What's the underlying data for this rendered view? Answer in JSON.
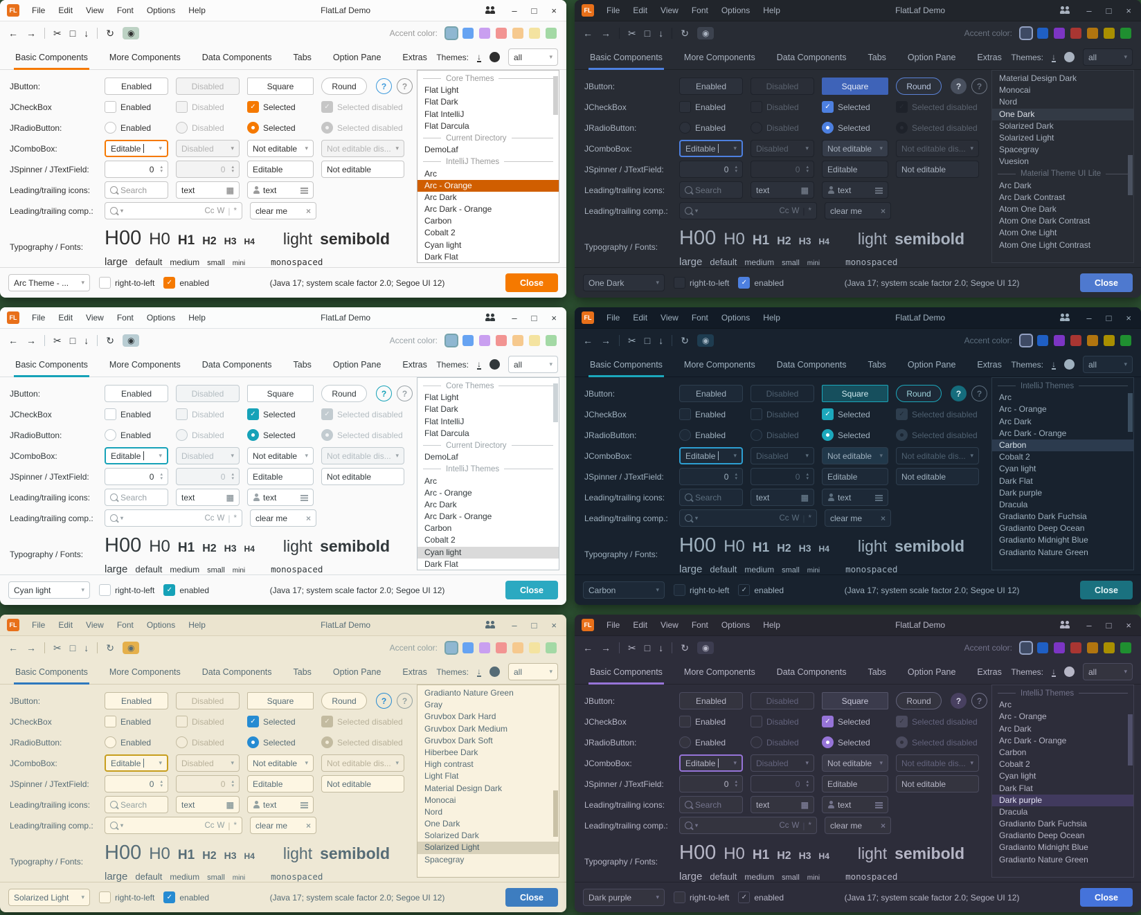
{
  "desktop": {
    "bg": "#2e5233"
  },
  "shared": {
    "logo": "FL",
    "window_title": "FlatLaf Demo",
    "menu": [
      "File",
      "Edit",
      "View",
      "Font",
      "Options",
      "Help"
    ],
    "tabs": [
      "Basic Components",
      "More Components",
      "Data Components",
      "Tabs",
      "Option Pane",
      "Extras"
    ],
    "active_tab": "Basic Components",
    "accent_label": "Accent color:",
    "themes_label": "Themes:",
    "themes_filter": "all",
    "icons": {
      "back": "←",
      "forward": "→",
      "cut": "✂",
      "refresh": "↻",
      "eye": "◉",
      "download": "↓",
      "calendar": "▦",
      "combo_arrow": "▾",
      "check": "✓",
      "clear": "×",
      "minimize": "–",
      "maximize": "□",
      "close_x": "×",
      "help": "?",
      "spin_up": "▴",
      "spin_down": "▾"
    },
    "rows": {
      "jbutton": {
        "label": "JButton:",
        "buttons": [
          "Enabled",
          "Disabled",
          "Square",
          "Round"
        ]
      },
      "jcheckbox": {
        "label": "JCheckBox",
        "items": [
          "Enabled",
          "Disabled",
          "Selected",
          "Selected disabled"
        ]
      },
      "jradio": {
        "label": "JRadioButton:",
        "items": [
          "Enabled",
          "Disabled",
          "Selected",
          "Selected disabled"
        ]
      },
      "jcombo": {
        "label": "JComboBox:",
        "items": [
          "Editable",
          "Disabled",
          "Not editable",
          "Not editable dis..."
        ]
      },
      "jspinner": {
        "label": "JSpinner / JTextField:",
        "spinner1": "0",
        "spinner2": "0",
        "field1": "Editable",
        "field2": "Not editable"
      },
      "icons_row": {
        "label": "Leading/trailing icons:",
        "search_placeholder": "Search",
        "field2": "text",
        "field3": "text"
      },
      "comp_row": {
        "label": "Leading/trailing comp.:",
        "trail": [
          "Cc",
          "W",
          "|",
          "*"
        ],
        "clear_field": "clear me"
      },
      "typography": {
        "label": "Typography / Fonts:",
        "h00": "H00",
        "h0": "H0",
        "h1": "H1",
        "h2": "H2",
        "h3": "H3",
        "h4": "H4",
        "light": "light",
        "semibold": "semibold",
        "sizes": [
          "large",
          "default",
          "medium",
          "small",
          "mini"
        ],
        "monospaced": "monospaced"
      }
    },
    "bottom": {
      "rtl": "right-to-left",
      "enabled": "enabled",
      "java_info": "(Java 17;  system scale factor 2.0; Segoe UI 12)",
      "close": "Close"
    },
    "palettes": {
      "light": {
        "ring": "#76a3ad",
        "colors": [
          "#8fb7d1",
          "#66a3f2",
          "#c99ff0",
          "#f29492",
          "#f6c98e",
          "#f4e3a0",
          "#a3d9a5"
        ]
      },
      "dark": {
        "ring": "#93a1c2",
        "colors": [
          "#3e4a64",
          "#1f5fc4",
          "#7c35c4",
          "#a93632",
          "#b1750f",
          "#a98f00",
          "#1f8f30"
        ]
      }
    }
  },
  "windows": [
    {
      "theme_name": "Arc - Orange",
      "bottom_theme": "Arc Theme - ...",
      "swatch_set": "light",
      "themes": {
        "selected": "Arc - Orange",
        "thumb_top": "3%",
        "thumb_h": "20%",
        "items": [
          {
            "sep": "Core Themes"
          },
          "Flat Light",
          "Flat Dark",
          "Flat IntelliJ",
          "Flat Darcula",
          {
            "sep": "Current Directory"
          },
          "DemoLaf",
          {
            "sep": "IntelliJ Themes"
          },
          "Arc",
          "Arc - Orange",
          "Arc Dark",
          "Arc Dark - Orange",
          "Carbon",
          "Cobalt 2",
          "Cyan light",
          "Dark Flat"
        ]
      },
      "colors": {
        "bg": "#fafafa",
        "tb": "#fcfcfc",
        "tbborder": "#e3e3e3",
        "fg": "#2f2f2f",
        "muted": "#9a9a9a",
        "border": "#dcdcdc",
        "ctl": "#ffffff",
        "ctlbd": "#c6c6c6",
        "accent": "#f57900",
        "check": "#f57900",
        "focus": "#f57900",
        "close": "#f57900",
        "closefg": "#ffffff",
        "eyebg": "#bdd2c4",
        "help1bg": "transparent",
        "help1fg": "#3f9bdc",
        "help1bd": "#3f9bdc",
        "listbg": "#ffffff",
        "listbd": "#b9b9b9",
        "listselbg": "#d05e00",
        "listselfg": "#ffffff",
        "thumb": "#cfcfcf",
        "disfg": "#b4b4b4",
        "disbg": "#f3f3f3",
        "squarebg": "#ffffff",
        "squarefg": "#2f2f2f",
        "squarebd": "#c6c6c6",
        "roundbd": "#c6c6c6",
        "roundfg": "#2f2f2f",
        "combo3bg": "#ffffff",
        "encbbg": "#f57900",
        "encbfg": "#ffffff",
        "encbbd": "#f57900"
      }
    },
    {
      "theme_name": "One Dark",
      "bottom_theme": "One Dark",
      "swatch_set": "dark",
      "themes": {
        "selected": "One Dark",
        "thumb_top": "44%",
        "thumb_h": "21%",
        "items": [
          "Material Design Dark",
          "Monocai",
          "Nord",
          "One Dark",
          "Solarized Dark",
          "Solarized Light",
          "Spacegray",
          "Vuesion",
          {
            "sep": "Material Theme UI Lite"
          },
          "Arc Dark",
          "Arc Dark Contrast",
          "Atom One Dark",
          "Atom One Dark Contrast",
          "Atom One Light",
          "Atom One Light Contrast"
        ]
      },
      "colors": {
        "bg": "#282c34",
        "tb": "#21252b",
        "tbborder": "#1b1e23",
        "fg": "#a9b2bf",
        "muted": "#6b7380",
        "border": "#1d2026",
        "ctl": "#2c313b",
        "ctlbd": "#1e222a",
        "accent": "#4d80e0",
        "check": "#4d80e0",
        "focus": "#4d80e0",
        "close": "#4e79cf",
        "closefg": "#ffffff",
        "eyebg": "#3c424e",
        "help1bg": "#49505e",
        "help1fg": "#d0d6e0",
        "help1bd": "#49505e",
        "listbg": "#282c34",
        "listbd": "#363b45",
        "listselbg": "#333a45",
        "listselfg": "#dde1e8",
        "thumb": "#4b5260",
        "disfg": "#5a626e",
        "disbg": "#2a2e37",
        "squarebg": "#3e63b8",
        "squarefg": "#e9eef8",
        "squarebd": "#3e63b8",
        "roundbd": "#5b82d6",
        "roundfg": "#b9c6de",
        "combo3bg": "#363d4a",
        "encbbg": "#4d80e0",
        "encbfg": "#ffffff",
        "encbbd": "#4d80e0"
      }
    },
    {
      "theme_name": "Cyan light",
      "bottom_theme": "Cyan light",
      "swatch_set": "light",
      "themes": {
        "selected": "Cyan light",
        "thumb_top": "3%",
        "thumb_h": "20%",
        "items": [
          {
            "sep": "Core Themes"
          },
          "Flat Light",
          "Flat Dark",
          "Flat IntelliJ",
          "Flat Darcula",
          {
            "sep": "Current Directory"
          },
          "DemoLaf",
          {
            "sep": "IntelliJ Themes"
          },
          "Arc",
          "Arc - Orange",
          "Arc Dark",
          "Arc Dark - Orange",
          "Carbon",
          "Cobalt 2",
          "Cyan light",
          "Dark Flat"
        ]
      },
      "colors": {
        "bg": "#fafafa",
        "tb": "#fbfcfc",
        "tbborder": "#e0e4e6",
        "fg": "#31383b",
        "muted": "#9aa3a8",
        "border": "#dadfe1",
        "ctl": "#ffffff",
        "ctlbd": "#c2cbd0",
        "accent": "#16a2b8",
        "check": "#16a2b8",
        "focus": "#16a2b8",
        "close": "#2ba9c1",
        "closefg": "#ffffff",
        "eyebg": "#b9cdd3",
        "help1bg": "transparent",
        "help1fg": "#16a2b8",
        "help1bd": "#16a2b8",
        "listbg": "#ffffff",
        "listbd": "#bcc5ca",
        "listselbg": "#dadada",
        "listselfg": "#31383b",
        "thumb": "#ccd3d7",
        "disfg": "#b3bcc1",
        "disbg": "#f2f4f5",
        "squarebg": "#ffffff",
        "squarefg": "#31383b",
        "squarebd": "#c2cbd0",
        "roundbd": "#c2cbd0",
        "roundfg": "#31383b",
        "combo3bg": "#ffffff",
        "encbbg": "#16a2b8",
        "encbfg": "#ffffff",
        "encbbd": "#16a2b8"
      }
    },
    {
      "theme_name": "Carbon",
      "bottom_theme": "Carbon",
      "swatch_set": "dark",
      "themes": {
        "selected": "Carbon",
        "thumb_top": "8%",
        "thumb_h": "20%",
        "items": [
          {
            "sep": "IntelliJ Themes"
          },
          "Arc",
          "Arc - Orange",
          "Arc Dark",
          "Arc Dark - Orange",
          "Carbon",
          "Cobalt 2",
          "Cyan light",
          "Dark Flat",
          "Dark purple",
          "Dracula",
          "Gradianto Dark Fuchsia",
          "Gradianto Deep Ocean",
          "Gradianto Midnight Blue",
          "Gradianto Nature Green"
        ]
      },
      "colors": {
        "bg": "#18222e",
        "tb": "#121b26",
        "tbborder": "#0e151e",
        "fg": "#9fb1bf",
        "muted": "#5c6e7e",
        "border": "#0f1722",
        "ctl": "#1d2937",
        "ctlbd": "#2e3e4e",
        "accent": "#1ca8bc",
        "check": "#1ca8bc",
        "focus": "#2d9fd2",
        "close": "#1a717f",
        "closefg": "#e3f4f6",
        "eyebg": "#1e3c50",
        "help1bg": "#156d7d",
        "help1fg": "#e3f4f6",
        "help1bd": "#156d7d",
        "listbg": "#18222e",
        "listbd": "#2b3a49",
        "listselbg": "#2c3b4e",
        "listselfg": "#d8e3ea",
        "thumb": "#3b4e60",
        "disfg": "#4e6070",
        "disbg": "#1a2532",
        "squarebg": "#164f5d",
        "squarefg": "#cfe9ee",
        "squarebd": "#1ca8bc",
        "roundbd": "#1ca8bc",
        "roundfg": "#9fd4dc",
        "combo3bg": "#21384a",
        "encbbg": "transparent",
        "encbfg": "#9fb1bf",
        "encbbd": "#2e3e4e"
      }
    },
    {
      "theme_name": "Solarized Light",
      "bottom_theme": "Solarized Light",
      "swatch_set": "light",
      "themes": {
        "selected": "Solarized Light",
        "thumb_top": "55%",
        "thumb_h": "24%",
        "items": [
          "Gradianto Nature Green",
          "Gray",
          "Gruvbox Dark Hard",
          "Gruvbox Dark Medium",
          "Gruvbox Dark Soft",
          "Hiberbee Dark",
          "High contrast",
          "Light Flat",
          "Material Design Dark",
          "Monocai",
          "Nord",
          "One Dark",
          "Solarized Dark",
          "Solarized Light",
          "Spacegray"
        ]
      },
      "colors": {
        "bg": "#eee8d5",
        "tb": "#ebe4cf",
        "tbborder": "#d9d1b8",
        "fg": "#566c76",
        "muted": "#93a1a1",
        "border": "#d5cdb4",
        "ctl": "#fdf6e3",
        "ctlbd": "#c3bba0",
        "accent": "#2e78bd",
        "check": "#268bd2",
        "focus": "#c79e1d",
        "close": "#3d7dc0",
        "closefg": "#ffffff",
        "eyebg": "#e5b04b",
        "help1bg": "transparent",
        "help1fg": "#268bd2",
        "help1bd": "#268bd2",
        "listbg": "#f9f2df",
        "listbd": "#c3bba0",
        "listselbg": "#d8d1ba",
        "listselfg": "#49606b",
        "thumb": "#c9c1a6",
        "disfg": "#b8b19a",
        "disbg": "#f3ecd9",
        "squarebg": "#fdf6e3",
        "squarefg": "#566c76",
        "squarebd": "#c3bba0",
        "roundbd": "#c3bba0",
        "roundfg": "#566c76",
        "combo3bg": "#fdf6e3",
        "encbbg": "#268bd2",
        "encbfg": "#ffffff",
        "encbbd": "#268bd2"
      }
    },
    {
      "theme_name": "Dark purple",
      "bottom_theme": "Dark purple",
      "swatch_set": "dark",
      "themes": {
        "selected": "Dark purple",
        "thumb_top": "15%",
        "thumb_h": "27%",
        "items": [
          {
            "sep": "IntelliJ Themes"
          },
          "Arc",
          "Arc - Orange",
          "Arc Dark",
          "Arc Dark - Orange",
          "Carbon",
          "Cobalt 2",
          "Cyan light",
          "Dark Flat",
          "Dark purple",
          "Dracula",
          "Gradianto Dark Fuchsia",
          "Gradianto Deep Ocean",
          "Gradianto Midnight Blue",
          "Gradianto Nature Green"
        ]
      },
      "colors": {
        "bg": "#2d2d3a",
        "tb": "#26262f",
        "tbborder": "#1f1f28",
        "fg": "#b6b6c6",
        "muted": "#74748c",
        "border": "#22222c",
        "ctl": "#34343f",
        "ctlbd": "#4b4b5e",
        "accent": "#9674d8",
        "check": "#9674d8",
        "focus": "#9674d8",
        "close": "#4573da",
        "closefg": "#ffffff",
        "eyebg": "#3d3d50",
        "help1bg": "#484060",
        "help1fg": "#d6d6e6",
        "help1bd": "#484060",
        "listbg": "#2d2d3a",
        "listbd": "#414152",
        "listselbg": "#413a5e",
        "listselfg": "#e4e4f4",
        "thumb": "#50506a",
        "disfg": "#63637c",
        "disbg": "#30303c",
        "squarebg": "#3b3b4c",
        "squarefg": "#c6c6d8",
        "squarebd": "#55556a",
        "roundbd": "#62627a",
        "roundfg": "#b6b6c6",
        "combo3bg": "#3a3a48",
        "encbbg": "transparent",
        "encbfg": "#b6b6c6",
        "encbbd": "#4b4b5e"
      }
    }
  ]
}
